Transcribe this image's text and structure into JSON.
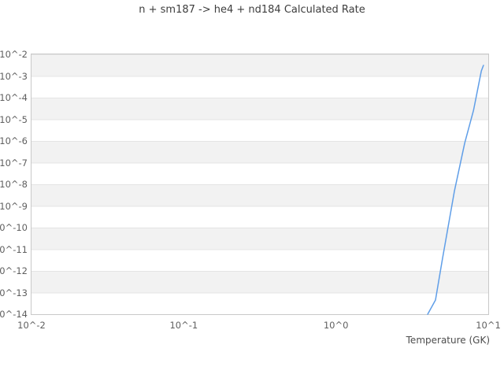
{
  "chart_data": {
    "type": "line",
    "title": "n + sm187 -> he4 + nd184 Calculated Rate",
    "xlabel": "Temperature (GK)",
    "ylabel": "",
    "x_scale": "log",
    "y_scale": "log",
    "xlim": [
      0.01,
      10
    ],
    "ylim": [
      1e-14,
      0.01
    ],
    "x_tick_values": [
      0.01,
      0.1,
      1,
      10
    ],
    "x_tick_labels": [
      "10^-2",
      "10^-1",
      "10^0",
      "10^1"
    ],
    "y_tick_values": [
      0.01,
      0.001,
      0.0001,
      1e-05,
      1e-06,
      1e-07,
      1e-08,
      1e-09,
      1e-10,
      1e-11,
      1e-12,
      1e-13,
      1e-14
    ],
    "y_tick_labels": [
      "10^-2",
      "10^-3",
      "10^-4",
      "10^-5",
      "10^-6",
      "10^-7",
      "10^-8",
      "10^-9",
      "10^-10",
      "10^-11",
      "10^-12",
      "10^-13",
      "10^-14"
    ],
    "legend": "none",
    "grid": "horizontal gridlines with alternating gray bands, no vertical gridlines",
    "colors": {
      "line": "#5f9ee8",
      "band": "#f2f2f2",
      "gridline": "#e4e4e4",
      "border": "#c9c9c9",
      "title_text": "#3d3d3d",
      "tick_text": "#5f5f5f",
      "axis_label_text": "#4d4d4d",
      "background": "#ffffff"
    },
    "series": [
      {
        "name": "calculated rate",
        "points": [
          [
            4.0,
            1e-14
          ],
          [
            4.5,
            4.5e-14
          ],
          [
            5.0,
            3.5e-12
          ],
          [
            6.0,
            5e-09
          ],
          [
            7.0,
            8e-07
          ],
          [
            8.0,
            2.6e-05
          ],
          [
            9.0,
            0.0017
          ],
          [
            9.3,
            0.0031
          ]
        ]
      }
    ]
  }
}
